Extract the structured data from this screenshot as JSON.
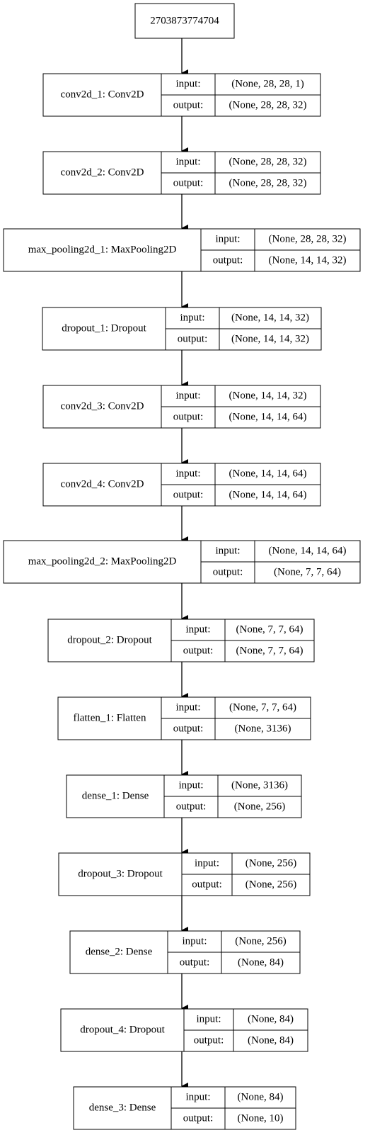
{
  "root": {
    "label": "2703873774704"
  },
  "layers": [
    {
      "name": "conv2d_1: Conv2D",
      "input_label": "input:",
      "output_label": "output:",
      "input": "(None, 28, 28, 1)",
      "output": "(None, 28, 28, 32)"
    },
    {
      "name": "conv2d_2: Conv2D",
      "input_label": "input:",
      "output_label": "output:",
      "input": "(None, 28, 28, 32)",
      "output": "(None, 28, 28, 32)"
    },
    {
      "name": "max_pooling2d_1: MaxPooling2D",
      "input_label": "input:",
      "output_label": "output:",
      "input": "(None, 28, 28, 32)",
      "output": "(None, 14, 14, 32)"
    },
    {
      "name": "dropout_1: Dropout",
      "input_label": "input:",
      "output_label": "output:",
      "input": "(None, 14, 14, 32)",
      "output": "(None, 14, 14, 32)"
    },
    {
      "name": "conv2d_3: Conv2D",
      "input_label": "input:",
      "output_label": "output:",
      "input": "(None, 14, 14, 32)",
      "output": "(None, 14, 14, 64)"
    },
    {
      "name": "conv2d_4: Conv2D",
      "input_label": "input:",
      "output_label": "output:",
      "input": "(None, 14, 14, 64)",
      "output": "(None, 14, 14, 64)"
    },
    {
      "name": "max_pooling2d_2: MaxPooling2D",
      "input_label": "input:",
      "output_label": "output:",
      "input": "(None, 14, 14, 64)",
      "output": "(None, 7, 7, 64)"
    },
    {
      "name": "dropout_2: Dropout",
      "input_label": "input:",
      "output_label": "output:",
      "input": "(None, 7, 7, 64)",
      "output": "(None, 7, 7, 64)"
    },
    {
      "name": "flatten_1: Flatten",
      "input_label": "input:",
      "output_label": "output:",
      "input": "(None, 7, 7, 64)",
      "output": "(None, 3136)"
    },
    {
      "name": "dense_1: Dense",
      "input_label": "input:",
      "output_label": "output:",
      "input": "(None, 3136)",
      "output": "(None, 256)"
    },
    {
      "name": "dropout_3: Dropout",
      "input_label": "input:",
      "output_label": "output:",
      "input": "(None, 256)",
      "output": "(None, 256)"
    },
    {
      "name": "dense_2: Dense",
      "input_label": "input:",
      "output_label": "output:",
      "input": "(None, 256)",
      "output": "(None, 84)"
    },
    {
      "name": "dropout_4: Dropout",
      "input_label": "input:",
      "output_label": "output:",
      "input": "(None, 84)",
      "output": "(None, 84)"
    },
    {
      "name": "dense_3: Dense",
      "input_label": "input:",
      "output_label": "output:",
      "input": "(None, 84)",
      "output": "(None, 10)"
    }
  ]
}
